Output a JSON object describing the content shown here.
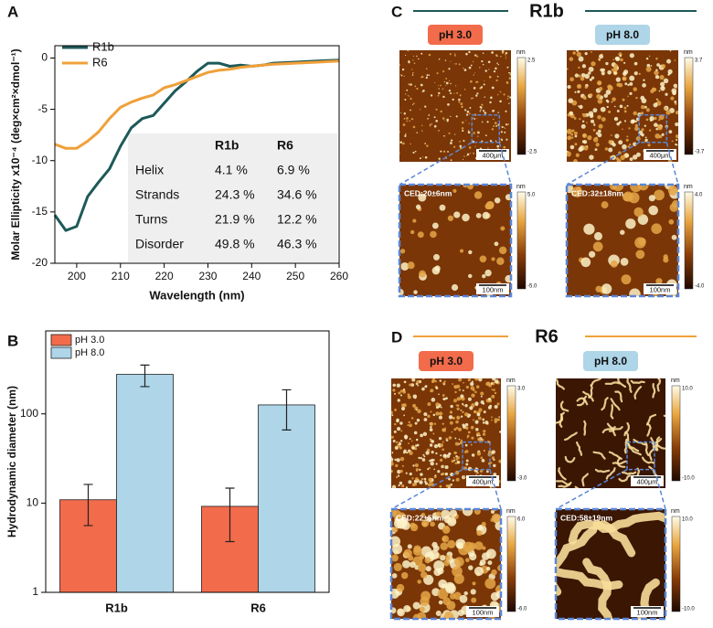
{
  "chart_data": [
    {
      "type": "line",
      "panel_label": "A",
      "xlabel": "Wavelength (nm)",
      "ylabel": "Molar Ellipticity x10⁻⁴ (deg×cm²×dmol⁻¹)",
      "x": [
        195,
        197.5,
        200,
        202.5,
        205,
        207.5,
        210,
        212.5,
        215,
        217.5,
        220,
        222.5,
        225,
        227.5,
        230,
        232.5,
        235,
        237.5,
        240,
        242.5,
        245,
        250,
        255,
        260
      ],
      "series": [
        {
          "name": "R1b",
          "color": "#1d5958",
          "values": [
            -15.3,
            -16.8,
            -16.4,
            -13.5,
            -12.1,
            -10.8,
            -8.6,
            -6.8,
            -5.9,
            -5.6,
            -4.4,
            -3.2,
            -2.3,
            -1.3,
            -0.5,
            -0.5,
            -0.8,
            -0.7,
            -0.8,
            -0.7,
            -0.5,
            -0.4,
            -0.3,
            -0.2
          ]
        },
        {
          "name": "R6",
          "color": "#f0a03a",
          "values": [
            -8.4,
            -8.8,
            -8.8,
            -8.1,
            -7.2,
            -5.9,
            -4.8,
            -4.3,
            -3.9,
            -3.6,
            -2.9,
            -2.6,
            -2.2,
            -1.8,
            -1.4,
            -1.2,
            -1.1,
            -0.9,
            -0.8,
            -0.7,
            -0.6,
            -0.5,
            -0.4,
            -0.3
          ]
        }
      ],
      "xlim": [
        195,
        260
      ],
      "xticks": [
        200,
        210,
        220,
        230,
        240,
        250,
        260
      ],
      "ylim": [
        -20,
        1.2
      ],
      "yticks": [
        0,
        -5,
        -10,
        -15,
        -20
      ],
      "legend": "upper left",
      "table": {
        "columns": [
          "R1b",
          "R6"
        ],
        "rows": [
          [
            "Helix",
            "4.1 %",
            "6.9 %"
          ],
          [
            "Strands",
            "24.3 %",
            "34.6 %"
          ],
          [
            "Turns",
            "21.9 %",
            "12.2 %"
          ],
          [
            "Disorder",
            "49.8 %",
            "46.3 %"
          ]
        ]
      }
    },
    {
      "type": "bar",
      "panel_label": "B",
      "ylabel": "Hydrodynamic diameter (nm)",
      "categories": [
        "R1b",
        "R6"
      ],
      "series": [
        {
          "name": "pH 3.0",
          "color": "#f26b4b",
          "values": [
            10.9,
            9.2
          ],
          "errors": [
            5.3,
            5.5
          ]
        },
        {
          "name": "pH 8.0",
          "color": "#aed5e8",
          "values": [
            277,
            126
          ],
          "errors": [
            75,
            60
          ]
        }
      ],
      "log_scale": true,
      "ylim": [
        1,
        850
      ],
      "yticks": [
        1,
        10,
        100
      ],
      "legend": "upper left"
    }
  ],
  "afm_panels": [
    {
      "label": "C",
      "title": "R1b",
      "images": [
        {
          "condition": "pH 3.0",
          "overview": {
            "unit": "nm",
            "max": "2.5",
            "min": "-2.5",
            "scale": "400μm"
          },
          "zoom": {
            "unit": "nm",
            "max": "5.0",
            "min": "-5.0",
            "scale": "100nm",
            "ced": "CED:20±6nm"
          }
        },
        {
          "condition": "pH 8.0",
          "overview": {
            "unit": "nm",
            "max": "3.7",
            "min": "-3.7",
            "scale": "400μm"
          },
          "zoom": {
            "unit": "nm",
            "max": "4.0",
            "min": "-4.0",
            "scale": "100nm",
            "ced": "CED:32±18nm"
          }
        }
      ]
    },
    {
      "label": "D",
      "title": "R6",
      "images": [
        {
          "condition": "pH 3.0",
          "overview": {
            "unit": "nm",
            "max": "3.0",
            "min": "-3.0",
            "scale": "400μm"
          },
          "zoom": {
            "unit": "nm",
            "max": "6.0",
            "min": "-6.0",
            "scale": "100nm",
            "ced": "CED:22±5nm"
          }
        },
        {
          "condition": "pH 8.0",
          "overview": {
            "unit": "nm",
            "max": "10.0",
            "min": "-10.0",
            "scale": "400μm"
          },
          "zoom": {
            "unit": "nm",
            "max": "10.0",
            "min": "-10.0",
            "scale": "100nm",
            "ced": "CED:58±19nm"
          }
        }
      ]
    }
  ]
}
